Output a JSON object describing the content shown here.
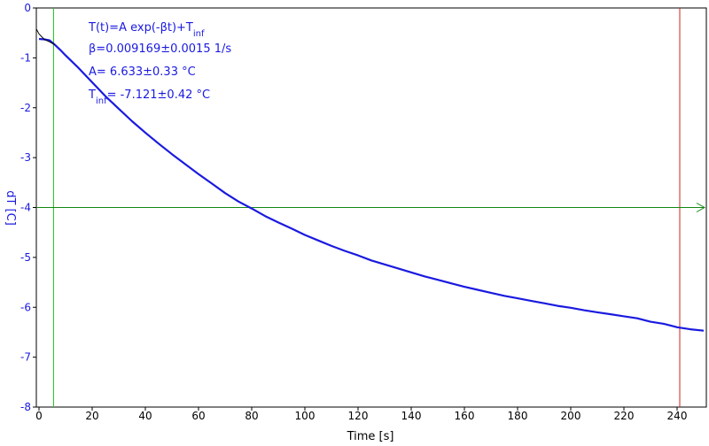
{
  "chart_data": {
    "type": "line",
    "xlabel": "Time [s]",
    "ylabel": "dT [C]",
    "xlim": [
      -1,
      251
    ],
    "ylim": [
      -8,
      0
    ],
    "x_ticks": [
      0,
      20,
      40,
      60,
      80,
      100,
      120,
      140,
      160,
      180,
      200,
      220,
      240
    ],
    "y_ticks": [
      0,
      -1,
      -2,
      -3,
      -4,
      -5,
      -6,
      -7,
      -8
    ],
    "x_tick_labels": [
      "0",
      "20",
      "40",
      "60",
      "80",
      "100",
      "120",
      "140",
      "160",
      "180",
      "200",
      "220",
      "240"
    ],
    "y_tick_labels": [
      "0",
      "-1",
      "-2",
      "-3",
      "-4",
      "-5",
      "-6",
      "-7",
      "-8"
    ],
    "annotations": {
      "formula_main": "T(t)=A exp(-βt)+T",
      "formula_sub": "inf",
      "beta": "β=0.009169±0.0015 1/s",
      "amplitude": "A= 6.633±0.33 °C",
      "tinf_main": "T",
      "tinf_sub": "inf",
      "tinf_rest": "= -7.121±0.42 °C"
    },
    "series": [
      {
        "color": "#1a1ae0",
        "x": [
          0,
          2,
          4,
          6,
          8,
          10,
          15,
          20,
          25,
          30,
          35,
          40,
          45,
          50,
          55,
          60,
          65,
          70,
          75,
          80,
          85,
          90,
          95,
          100,
          105,
          110,
          115,
          120,
          125,
          130,
          135,
          140,
          145,
          150,
          155,
          160,
          165,
          170,
          175,
          180,
          185,
          190,
          195,
          200,
          205,
          210,
          215,
          220,
          225,
          230,
          235,
          240,
          245,
          250
        ],
        "y": [
          -0.62,
          -0.63,
          -0.65,
          -0.74,
          -0.84,
          -0.95,
          -1.21,
          -1.49,
          -1.77,
          -2.02,
          -2.27,
          -2.5,
          -2.72,
          -2.93,
          -3.13,
          -3.33,
          -3.52,
          -3.71,
          -3.88,
          -4.02,
          -4.17,
          -4.3,
          -4.42,
          -4.55,
          -4.66,
          -4.77,
          -4.87,
          -4.96,
          -5.06,
          -5.14,
          -5.22,
          -5.3,
          -5.38,
          -5.45,
          -5.52,
          -5.59,
          -5.65,
          -5.71,
          -5.77,
          -5.82,
          -5.87,
          -5.92,
          -5.97,
          -6.01,
          -6.06,
          -6.1,
          -6.14,
          -6.18,
          -6.22,
          -6.29,
          -6.33,
          -6.4,
          -6.44,
          -6.47
        ]
      },
      {
        "color": "#000000",
        "x": [
          -1,
          0,
          2,
          4,
          6
        ],
        "y": [
          -0.42,
          -0.52,
          -0.63,
          -0.68,
          -0.74
        ]
      }
    ],
    "markers": {
      "vline_green_x": 5.5,
      "vline_red_x": 241,
      "hline_green_y": -4
    },
    "colors": {
      "data": "#1a1ae0",
      "fit": "#000000",
      "green_marker": "#22cc22",
      "horizontal_marker": "#118811",
      "red_marker": "#cc2222",
      "axis_text": "#1a1ae0"
    }
  }
}
